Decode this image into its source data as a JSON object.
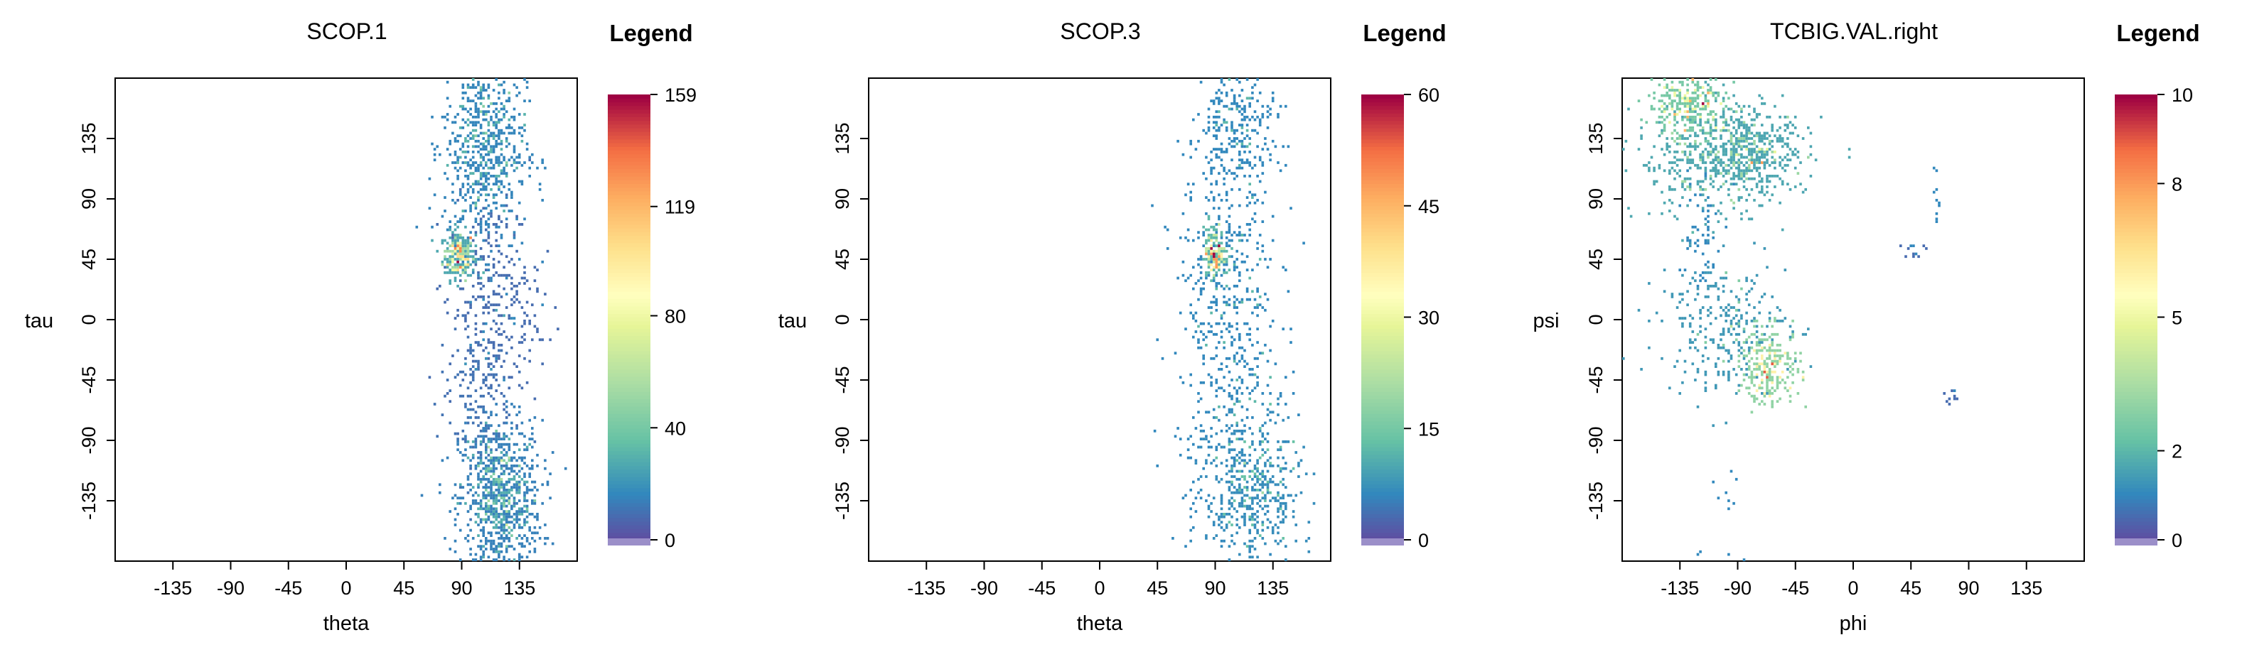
{
  "chart_data": [
    {
      "type": "heatmap",
      "title": "SCOP.1",
      "xlabel": "theta",
      "ylabel": "tau",
      "x_ticks": [
        "-135",
        "-90",
        "-45",
        "0",
        "45",
        "90",
        "135"
      ],
      "y_ticks": [
        "135",
        "90",
        "45",
        "0",
        "-45",
        "-90",
        "-135"
      ],
      "xlim": [
        -180,
        180
      ],
      "ylim": [
        -180,
        180
      ],
      "legend": {
        "title": "Legend",
        "ticks": [
          "0",
          "40",
          "80",
          "119",
          "159"
        ],
        "min": 0,
        "max": 159,
        "placement": "right"
      },
      "clusters": [
        {
          "x": 88,
          "y": 48,
          "sx": 6,
          "sy": 9,
          "n": 260,
          "peak": 159
        },
        {
          "x": 120,
          "y": -135,
          "sx": 16,
          "sy": 30,
          "n": 900,
          "peak": 70
        },
        {
          "x": 108,
          "y": 130,
          "sx": 16,
          "sy": 40,
          "n": 700,
          "peak": 45
        },
        {
          "x": 115,
          "y": 10,
          "sx": 18,
          "sy": 40,
          "n": 320,
          "peak": 25
        },
        {
          "x": 100,
          "y": -60,
          "sx": 14,
          "sy": 30,
          "n": 140,
          "peak": 20
        }
      ]
    },
    {
      "type": "heatmap",
      "title": "SCOP.3",
      "xlabel": "theta",
      "ylabel": "tau",
      "x_ticks": [
        "-135",
        "-90",
        "-45",
        "0",
        "45",
        "90",
        "135"
      ],
      "y_ticks": [
        "135",
        "90",
        "45",
        "0",
        "-45",
        "-90",
        "-135"
      ],
      "xlim": [
        -180,
        180
      ],
      "ylim": [
        -180,
        180
      ],
      "legend": {
        "title": "Legend",
        "ticks": [
          "0",
          "15",
          "30",
          "45",
          "60"
        ],
        "min": 0,
        "max": 60,
        "placement": "right"
      },
      "clusters": [
        {
          "x": 90,
          "y": 50,
          "sx": 4,
          "sy": 9,
          "n": 180,
          "peak": 60
        },
        {
          "x": 100,
          "y": 0,
          "sx": 20,
          "sy": 95,
          "n": 700,
          "peak": 12
        },
        {
          "x": 120,
          "y": -130,
          "sx": 18,
          "sy": 30,
          "n": 450,
          "peak": 20
        },
        {
          "x": 110,
          "y": 150,
          "sx": 15,
          "sy": 25,
          "n": 220,
          "peak": 12
        }
      ]
    },
    {
      "type": "heatmap",
      "title": "TCBIG.VAL.right",
      "xlabel": "phi",
      "ylabel": "psi",
      "x_ticks": [
        "-135",
        "-90",
        "-45",
        "0",
        "45",
        "90",
        "135"
      ],
      "y_ticks": [
        "135",
        "90",
        "45",
        "0",
        "-45",
        "-90",
        "-135"
      ],
      "xlim": [
        -180,
        180
      ],
      "ylim": [
        -180,
        180
      ],
      "legend": {
        "title": "Legend",
        "ticks": [
          "0",
          "2",
          "5",
          "8",
          "10"
        ],
        "min": 0,
        "max": 10,
        "placement": "right"
      },
      "clusters": [
        {
          "x": -130,
          "y": 160,
          "sx": 15,
          "sy": 12,
          "n": 260,
          "peak": 10
        },
        {
          "x": -80,
          "y": 125,
          "sx": 22,
          "sy": 15,
          "n": 380,
          "peak": 8
        },
        {
          "x": -110,
          "y": 120,
          "sx": 30,
          "sy": 22,
          "n": 420,
          "peak": 5
        },
        {
          "x": -65,
          "y": -35,
          "sx": 12,
          "sy": 14,
          "n": 240,
          "peak": 9
        },
        {
          "x": -100,
          "y": -5,
          "sx": 25,
          "sy": 25,
          "n": 280,
          "peak": 4
        },
        {
          "x": -120,
          "y": 70,
          "sx": 8,
          "sy": 25,
          "n": 60,
          "peak": 2
        },
        {
          "x": 45,
          "y": 50,
          "sx": 6,
          "sy": 5,
          "n": 14,
          "peak": 1
        },
        {
          "x": 75,
          "y": -55,
          "sx": 4,
          "sy": 5,
          "n": 10,
          "peak": 1
        },
        {
          "x": 65,
          "y": 85,
          "sx": 2,
          "sy": 12,
          "n": 10,
          "peak": 1
        },
        {
          "x": -100,
          "y": -150,
          "sx": 12,
          "sy": 25,
          "n": 14,
          "peak": 1
        }
      ]
    }
  ]
}
